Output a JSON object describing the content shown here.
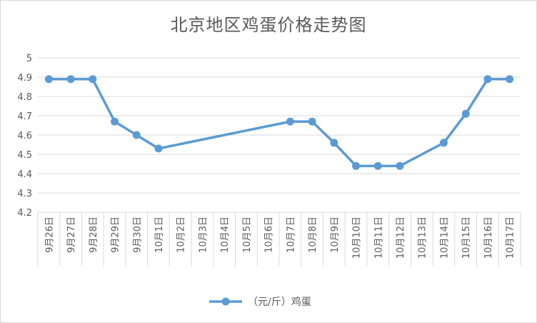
{
  "chart_data": {
    "type": "line",
    "title": "北京地区鸡蛋价格走势图",
    "categories": [
      "9月26日",
      "9月27日",
      "9月28日",
      "9月29日",
      "9月30日",
      "10月1日",
      "10月2日",
      "10月3日",
      "10月4日",
      "10月5日",
      "10月6日",
      "10月7日",
      "10月8日",
      "10月9日",
      "10月10日",
      "10月11日",
      "10月12日",
      "10月13日",
      "10月14日",
      "10月15日",
      "10月16日",
      "10月17日"
    ],
    "series": [
      {
        "name": "（元/斤）鸡蛋",
        "color": "#5b9bd5",
        "values": [
          4.89,
          4.89,
          4.89,
          4.67,
          4.6,
          4.53,
          null,
          null,
          null,
          null,
          null,
          4.67,
          4.67,
          4.56,
          4.44,
          4.44,
          4.44,
          null,
          4.56,
          4.71,
          4.89,
          4.89
        ]
      }
    ],
    "ylim": [
      4.2,
      5
    ],
    "yticks": [
      "5",
      "4.9",
      "4.8",
      "4.7",
      "4.6",
      "4.5",
      "4.4",
      "4.3",
      "4.2"
    ],
    "xlabel": "",
    "ylabel": "",
    "grid": true,
    "legend": "bottom"
  }
}
